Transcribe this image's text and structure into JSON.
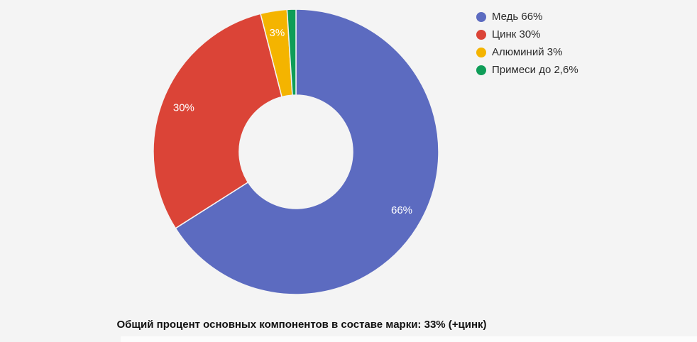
{
  "background_color": "#f4f4f4",
  "chart_data": {
    "type": "pie",
    "donut": true,
    "pie_hole_ratio": 0.4,
    "start_angle_deg": 0,
    "direction": "clockwise",
    "legend_position": "right",
    "slice_text_color": "#ffffff",
    "slices": [
      {
        "label": "Медь",
        "value": 66,
        "display_label": "66%",
        "legend_label": "Медь 66%",
        "color": "#5c6bc0"
      },
      {
        "label": "Цинк",
        "value": 30,
        "display_label": "30%",
        "legend_label": "Цинк 30%",
        "color": "#db4437"
      },
      {
        "label": "Алюминий",
        "value": 3,
        "display_label": "3%",
        "legend_label": "Алюминий 3%",
        "color": "#f4b400"
      },
      {
        "label": "Примеси",
        "value": 1,
        "display_label": "",
        "legend_label": "Примеси до 2,6%",
        "color": "#0f9d58"
      }
    ]
  },
  "caption": {
    "text": "Общий процент основных компонентов в составе марки: 33% (+цинк)"
  }
}
